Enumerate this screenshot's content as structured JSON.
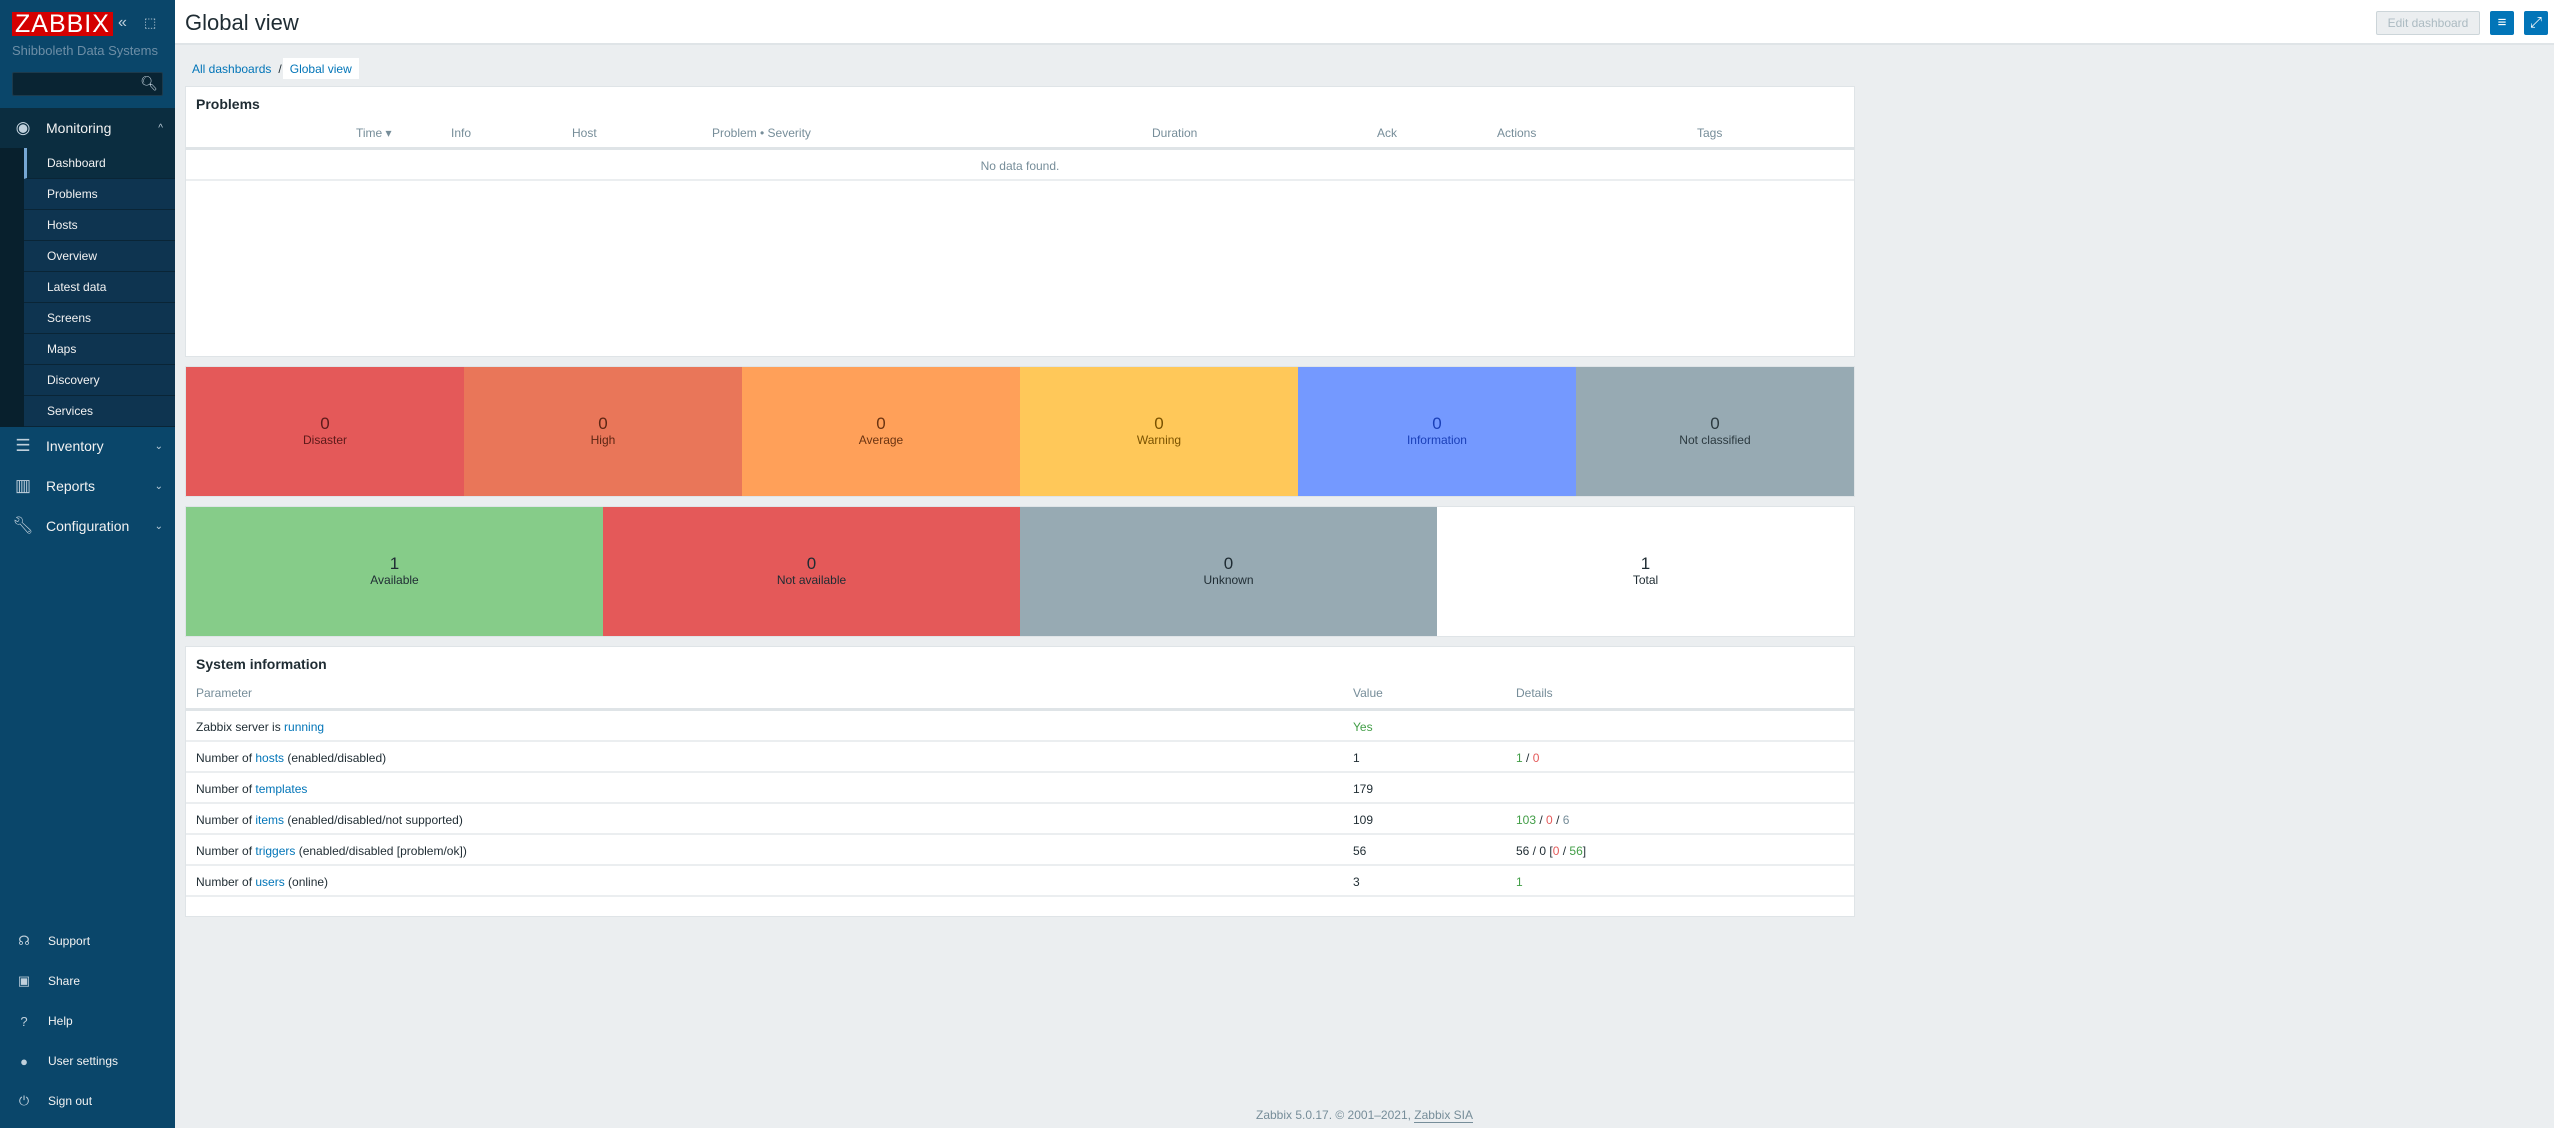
{
  "sidebar": {
    "logo": "ZABBIX",
    "org": "Shibboleth Data Systems",
    "search_placeholder": "",
    "monitoring": "Monitoring",
    "submenu": [
      "Dashboard",
      "Problems",
      "Hosts",
      "Overview",
      "Latest data",
      "Screens",
      "Maps",
      "Discovery",
      "Services"
    ],
    "inventory": "Inventory",
    "reports": "Reports",
    "configuration": "Configuration",
    "bottom": [
      "Support",
      "Share",
      "Help",
      "User settings",
      "Sign out"
    ]
  },
  "header": {
    "title": "Global view",
    "edit": "Edit dashboard"
  },
  "breadcrumb": {
    "all": "All dashboards",
    "sep": "/",
    "current": "Global view"
  },
  "problems": {
    "title": "Problems",
    "columns": [
      "Time ▾",
      "Info",
      "Host",
      "Problem • Severity",
      "Duration",
      "Ack",
      "Actions",
      "Tags"
    ],
    "empty": "No data found."
  },
  "severity": [
    {
      "count": "0",
      "label": "Disaster",
      "bg": "#e45959",
      "fg": "#5c1a1a"
    },
    {
      "count": "0",
      "label": "High",
      "bg": "#e97659",
      "fg": "#5c2614"
    },
    {
      "count": "0",
      "label": "Average",
      "bg": "#ffa059",
      "fg": "#6b3411"
    },
    {
      "count": "0",
      "label": "Warning",
      "bg": "#ffc859",
      "fg": "#7a5200"
    },
    {
      "count": "0",
      "label": "Information",
      "bg": "#7499ff",
      "fg": "#1a3fb8"
    },
    {
      "count": "0",
      "label": "Not classified",
      "bg": "#97aab3",
      "fg": "#2c3a40"
    }
  ],
  "availability": [
    {
      "count": "1",
      "label": "Available",
      "bg": "#86cc89"
    },
    {
      "count": "0",
      "label": "Not available",
      "bg": "#e45959"
    },
    {
      "count": "0",
      "label": "Unknown",
      "bg": "#97aab3"
    },
    {
      "count": "1",
      "label": "Total",
      "bg": "#ffffff"
    }
  ],
  "sysinfo": {
    "title": "System information",
    "columns": [
      "Parameter",
      "Value",
      "Details"
    ],
    "rows": [
      {
        "p1": "Zabbix server is ",
        "link": "running",
        "p2": "",
        "value": "Yes"
      },
      {
        "p1": "Number of ",
        "link": "hosts",
        "p2": " (enabled/disabled)",
        "value": "1",
        "d": [
          "1",
          " / ",
          "0"
        ]
      },
      {
        "p1": "Number of ",
        "link": "templates",
        "p2": "",
        "value": "179"
      },
      {
        "p1": "Number of ",
        "link": "items",
        "p2": " (enabled/disabled/not supported)",
        "value": "109",
        "d": [
          "103",
          " / ",
          "0",
          " / ",
          "6"
        ]
      },
      {
        "p1": "Number of ",
        "link": "triggers",
        "p2": " (enabled/disabled [problem/ok])",
        "value": "56",
        "d": [
          "56 / 0 [",
          "0",
          " / ",
          "56",
          "]"
        ]
      },
      {
        "p1": "Number of ",
        "link": "users",
        "p2": " (online)",
        "value": "3",
        "d": [
          "1"
        ]
      }
    ]
  },
  "footer": {
    "text": "Zabbix 5.0.17. © 2001–2021, ",
    "link": "Zabbix SIA"
  },
  "colors": {
    "ok": "#429e47",
    "problem": "#e45959",
    "unknown": "#768d99",
    "accent": "#0275b8"
  }
}
